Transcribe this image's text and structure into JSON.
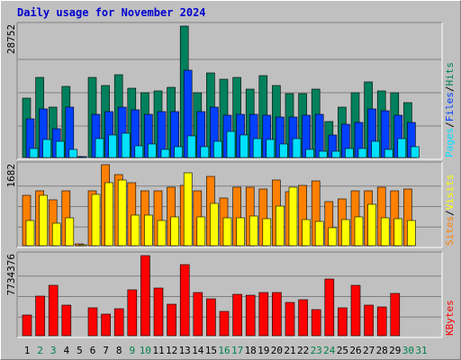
{
  "chart_data": {
    "type": "bar",
    "title": "Daily usage for November 2024",
    "days": [
      "1",
      "2",
      "3",
      "4",
      "5",
      "6",
      "7",
      "8",
      "9",
      "10",
      "11",
      "12",
      "13",
      "14",
      "15",
      "16",
      "17",
      "18",
      "19",
      "20",
      "21",
      "22",
      "23",
      "24",
      "25",
      "26",
      "27",
      "28",
      "29",
      "30",
      "31"
    ],
    "weekend_days": [
      "2",
      "3",
      "9",
      "10",
      "16",
      "17",
      "23",
      "24",
      "30",
      "31"
    ],
    "colors": {
      "hits": "#00805c",
      "files": "#0040ff",
      "pages": "#00e0ff",
      "visits": "#ffff00",
      "sites": "#ff8000",
      "kbytes": "#ff0000",
      "title": "#0000d0",
      "weekday_label": "#000000",
      "weekend_label": "#00804a"
    },
    "panels": [
      {
        "id": "hits-files-pages",
        "max_label": "28752",
        "ymax": 28752,
        "legend": [
          "Pages",
          "Files",
          "Hits"
        ],
        "series": [
          {
            "name": "Hits",
            "color": "#00805c",
            "values": [
              13060,
              17600,
              10930,
              15560,
              200,
              17600,
              15720,
              18150,
              15200,
              14180,
              14560,
              15360,
              28750,
              14180,
              18600,
              17150,
              17600,
              14870,
              17880,
              15720,
              13900,
              13900,
              15020,
              7800,
              11100,
              14180,
              16540,
              14560,
              14180,
              11950,
              0
            ]
          },
          {
            "name": "Files",
            "color": "#0040ff",
            "values": [
              8530,
              10700,
              6400,
              11100,
              200,
              9500,
              9950,
              10930,
              10400,
              9500,
              10140,
              9950,
              19080,
              10100,
              10930,
              9160,
              9500,
              9500,
              9320,
              8950,
              8920,
              9320,
              9500,
              4950,
              7250,
              7600,
              10700,
              10300,
              9160,
              7700,
              0
            ]
          },
          {
            "name": "Pages",
            "color": "#00e0ff",
            "values": [
              1900,
              3900,
              3450,
              1850,
              0,
              4100,
              5000,
              5350,
              2550,
              2900,
              1850,
              2350,
              4800,
              2350,
              3450,
              5750,
              4900,
              4100,
              3900,
              3000,
              4200,
              1850,
              1380,
              1380,
              1900,
              1900,
              3450,
              1850,
              4100,
              2350,
              0
            ]
          }
        ]
      },
      {
        "id": "visits-sites",
        "max_label": "1682",
        "ymax": 1682,
        "legend": [
          "Sites",
          "Visits"
        ],
        "series": [
          {
            "name": "Sites",
            "color": "#ff8000",
            "values": [
              1050,
              1160,
              970,
              1160,
              30,
              1160,
              1700,
              1490,
              1330,
              1160,
              1160,
              1220,
              1270,
              1160,
              1460,
              1000,
              1220,
              1220,
              1200,
              1380,
              1130,
              1260,
              1360,
              930,
              980,
              1160,
              1160,
              1220,
              1160,
              1200,
              0
            ]
          },
          {
            "name": "Visits",
            "color": "#ffff00",
            "values": [
              520,
              1050,
              480,
              590,
              20,
              1070,
              1320,
              1380,
              650,
              650,
              520,
              600,
              1530,
              600,
              890,
              580,
              580,
              620,
              560,
              840,
              1220,
              550,
              510,
              380,
              540,
              600,
              860,
              590,
              560,
              520,
              0
            ]
          }
        ]
      },
      {
        "id": "kbytes",
        "max_label": "7734376",
        "ymax": 7734376,
        "legend": [
          "KBytes"
        ],
        "series": [
          {
            "name": "KBytes",
            "color": "#ff0000",
            "values": [
              1970000,
              3820000,
              4880000,
              2980000,
              0,
              2680000,
              2100000,
              2650000,
              4430000,
              7730000,
              4570000,
              3030000,
              6880000,
              4200000,
              3520000,
              2360000,
              3980000,
              3920000,
              4180000,
              4180000,
              3250000,
              3450000,
              2480000,
              5450000,
              2680000,
              4840000,
              2950000,
              2750000,
              4080000,
              0,
              0
            ]
          }
        ]
      }
    ]
  }
}
